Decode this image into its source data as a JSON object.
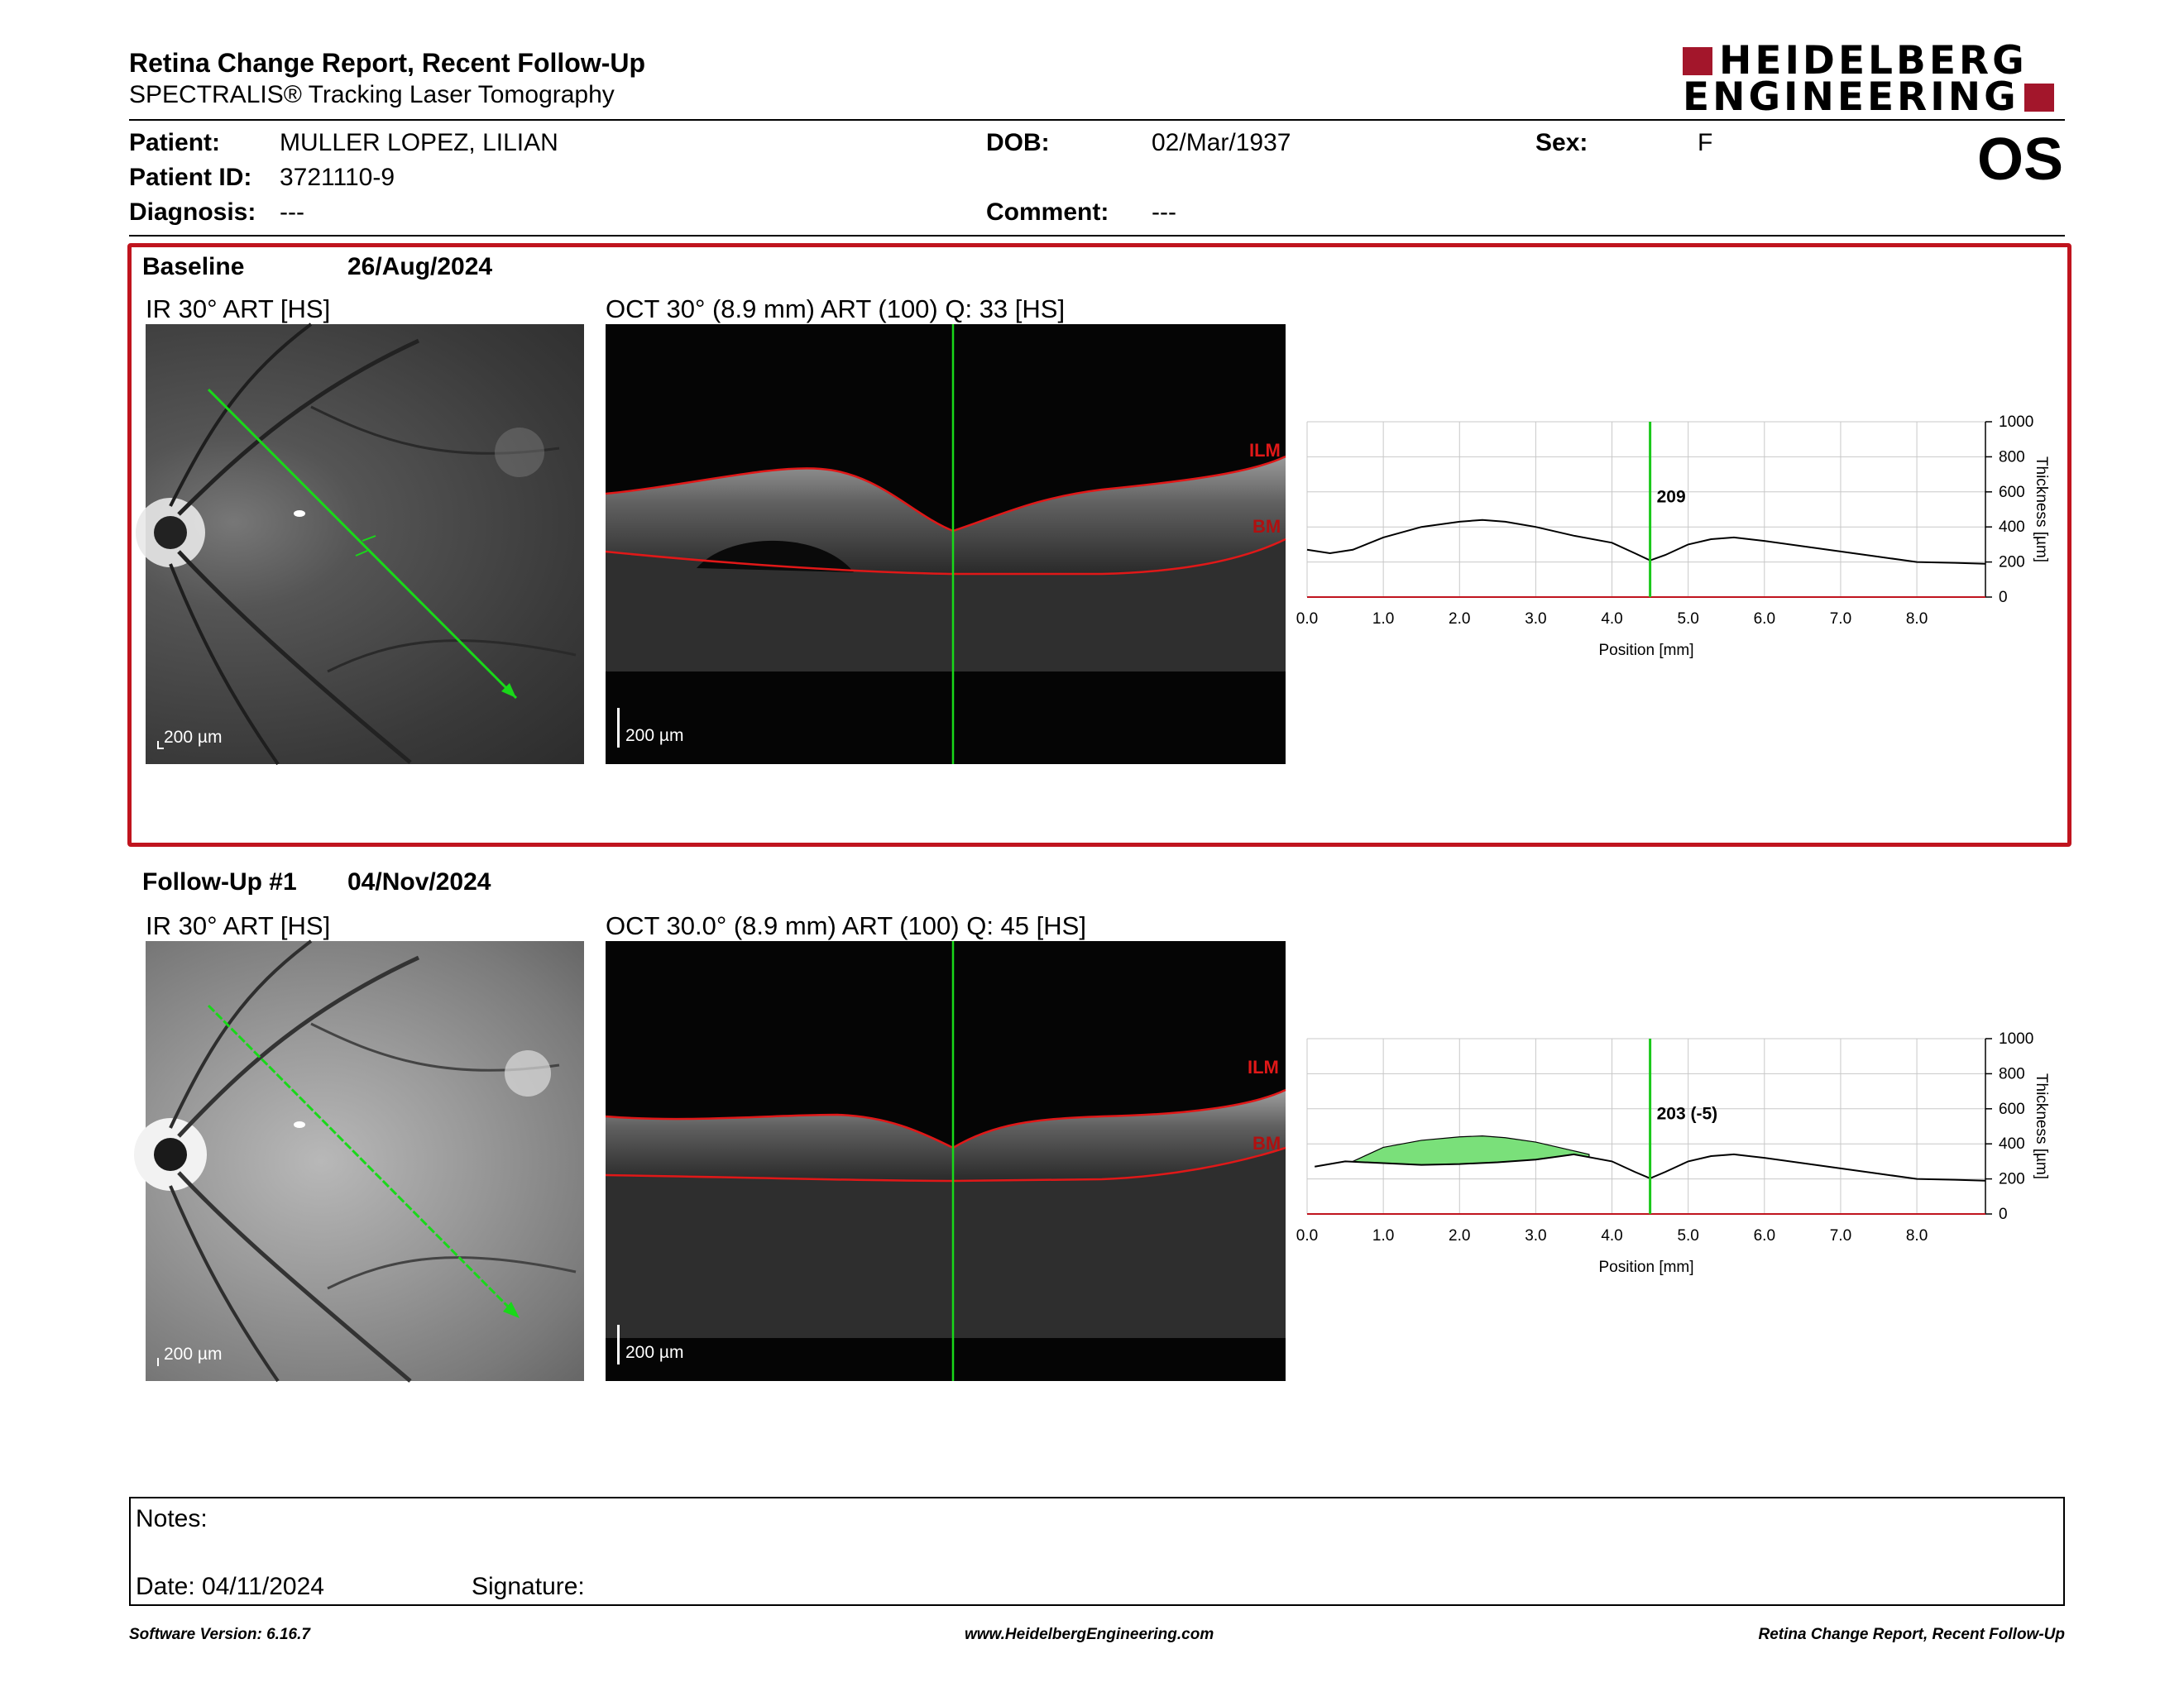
{
  "header": {
    "title": "Retina Change Report, Recent Follow-Up",
    "subtitle": "SPECTRALIS® Tracking Laser Tomography",
    "logo_line1": "HEIDELBERG",
    "logo_line2": "ENGINEERING",
    "eye": "OS"
  },
  "patient": {
    "name_label": "Patient:",
    "name": "MULLER LOPEZ, LILIAN",
    "id_label": "Patient ID:",
    "id": "3721110-9",
    "diag_label": "Diagnosis:",
    "diag": "---",
    "dob_label": "DOB:",
    "dob": "02/Mar/1937",
    "comment_label": "Comment:",
    "comment": "---",
    "sex_label": "Sex:",
    "sex": "F"
  },
  "baseline": {
    "label": "Baseline",
    "date": "26/Aug/2024",
    "ir_label": "IR 30° ART [HS]",
    "oct_label": "OCT 30° (8.9 mm) ART (100) Q: 33 [HS]",
    "ir_scale": "200 µm",
    "oct_scale": "200 µm",
    "ilm": "ILM",
    "bm": "BM",
    "marker_value": "209"
  },
  "followup": {
    "label": "Follow-Up #1",
    "date": "04/Nov/2024",
    "ir_label": "IR 30° ART [HS]",
    "oct_label": "OCT 30.0° (8.9 mm) ART (100) Q: 45 [HS]",
    "ir_scale": "200 µm",
    "oct_scale": "200 µm",
    "ilm": "ILM",
    "bm": "BM",
    "marker_value": "203 (-5)"
  },
  "chart_data": [
    {
      "type": "line",
      "xlabel": "Position [mm]",
      "ylabel": "Thickness [µm]",
      "xlim": [
        0,
        8.9
      ],
      "ylim": [
        0,
        1000
      ],
      "x_ticks": [
        "0.0",
        "1.0",
        "2.0",
        "3.0",
        "4.0",
        "5.0",
        "6.0",
        "7.0",
        "8.0"
      ],
      "y_ticks": [
        "0",
        "200",
        "400",
        "600",
        "800",
        "1000"
      ],
      "grid": true,
      "marker_x": 4.5,
      "marker_label": "209",
      "series": [
        {
          "x": [
            0,
            0.3,
            0.6,
            1.0,
            1.5,
            2.0,
            2.3,
            2.6,
            3.0,
            3.5,
            4.0,
            4.3,
            4.5,
            4.7,
            5.0,
            5.3,
            5.6,
            6.0,
            6.5,
            7.0,
            7.5,
            8.0,
            8.5,
            8.9
          ],
          "values": [
            270,
            250,
            270,
            340,
            400,
            430,
            440,
            430,
            400,
            350,
            310,
            250,
            209,
            240,
            300,
            330,
            340,
            320,
            290,
            260,
            230,
            200,
            195,
            190
          ]
        }
      ],
      "change_fill": null
    },
    {
      "type": "line",
      "xlabel": "Position [mm]",
      "ylabel": "Thickness [µm]",
      "xlim": [
        0,
        8.9
      ],
      "ylim": [
        0,
        1000
      ],
      "x_ticks": [
        "0.0",
        "1.0",
        "2.0",
        "3.0",
        "4.0",
        "5.0",
        "6.0",
        "7.0",
        "8.0"
      ],
      "y_ticks": [
        "0",
        "200",
        "400",
        "600",
        "800",
        "1000"
      ],
      "grid": true,
      "marker_x": 4.5,
      "marker_label": "203 (-5)",
      "series": [
        {
          "x": [
            0.1,
            0.5,
            1.0,
            1.5,
            2.0,
            2.5,
            3.0,
            3.5,
            4.0,
            4.3,
            4.5,
            4.7,
            5.0,
            5.3,
            5.6,
            6.0,
            6.5,
            7.0,
            7.5,
            8.0,
            8.5,
            8.9
          ],
          "values": [
            270,
            300,
            290,
            280,
            285,
            295,
            310,
            340,
            300,
            240,
            203,
            240,
            300,
            330,
            340,
            320,
            290,
            260,
            230,
            200,
            195,
            190
          ]
        }
      ],
      "change_fill": {
        "color": "#7ae07a",
        "x": [
          0.6,
          1.0,
          1.5,
          2.0,
          2.3,
          2.6,
          3.0,
          3.5,
          3.7
        ],
        "values": [
          300,
          380,
          420,
          440,
          445,
          435,
          410,
          360,
          340
        ]
      }
    }
  ],
  "notes": {
    "notes_label": "Notes:",
    "date_label": "Date: 04/11/2024",
    "sig_label": "Signature:"
  },
  "footer": {
    "version": "Software Version: 6.16.7",
    "url": "www.HeidelbergEngineering.com",
    "report": "Retina Change Report, Recent Follow-Up"
  },
  "colors": {
    "box_red": "#c0141e",
    "logo_red": "#a3162b",
    "marker_green": "#19c819",
    "fill_green": "#7ae07a"
  }
}
